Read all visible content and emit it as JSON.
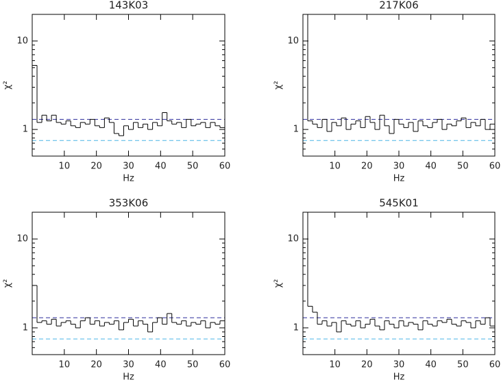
{
  "chart_data": [
    {
      "type": "histogram",
      "title": "143K03",
      "xlabel": "Hz",
      "ylabel": "χ²",
      "log_y": true,
      "color": "#000000",
      "bins": [
        0,
        1.5,
        3,
        4.5,
        6,
        7.5,
        9,
        10.5,
        12,
        13.5,
        15,
        16.5,
        18,
        19.5,
        21,
        22.5,
        24,
        25.5,
        27,
        28.5,
        30,
        31.5,
        33,
        34.5,
        36,
        37.5,
        39,
        40.5,
        42,
        43.5,
        45,
        46.5,
        48,
        49.5,
        51,
        52.5,
        54,
        55.5,
        57,
        58.5,
        60
      ],
      "values": [
        5.3,
        1.2,
        1.45,
        1.25,
        1.45,
        1.2,
        1.15,
        1.25,
        1.1,
        1.05,
        1.2,
        1.15,
        1.3,
        1.1,
        1.05,
        1.35,
        1.2,
        0.9,
        0.85,
        1.1,
        1.0,
        1.2,
        1.05,
        1.15,
        1.0,
        1.2,
        1.1,
        1.55,
        1.25,
        1.15,
        1.2,
        1.05,
        1.3,
        1.1,
        1.15,
        1.2,
        1.05,
        1.2,
        1.1,
        1.05
      ],
      "xlim": [
        0,
        60
      ],
      "xticks": [
        10,
        20,
        30,
        40,
        50,
        60
      ],
      "ylim": [
        0.5,
        20
      ],
      "yticks": [
        1,
        10
      ],
      "yminorticks": [
        0.6,
        0.7,
        0.8,
        0.9,
        2,
        3,
        4,
        5,
        6,
        7,
        8,
        9
      ],
      "hlines": [
        {
          "value": 1.3,
          "color": "#2a2a9a"
        },
        {
          "value": 0.75,
          "color": "#4ab4e6"
        }
      ]
    },
    {
      "type": "histogram",
      "title": "217K06",
      "xlabel": "Hz",
      "ylabel": "χ²",
      "log_y": true,
      "color": "#000000",
      "bins": [
        0,
        1.5,
        3,
        4.5,
        6,
        7.5,
        9,
        10.5,
        12,
        13.5,
        15,
        16.5,
        18,
        19.5,
        21,
        22.5,
        24,
        25.5,
        27,
        28.5,
        30,
        31.5,
        33,
        34.5,
        36,
        37.5,
        39,
        40.5,
        42,
        43.5,
        45,
        46.5,
        48,
        49.5,
        51,
        52.5,
        54,
        55.5,
        57,
        58.5,
        60
      ],
      "values": [
        20,
        1.25,
        1.15,
        1.05,
        1.3,
        0.95,
        1.2,
        1.1,
        1.35,
        1.0,
        1.15,
        1.25,
        1.05,
        1.4,
        1.2,
        1.0,
        1.45,
        1.1,
        0.9,
        1.3,
        1.15,
        1.05,
        1.2,
        0.95,
        1.25,
        1.1,
        1.05,
        1.2,
        1.3,
        1.0,
        1.15,
        1.1,
        1.25,
        1.35,
        1.05,
        1.2,
        1.1,
        1.3,
        1.0,
        1.15
      ],
      "xlim": [
        0,
        60
      ],
      "xticks": [
        10,
        20,
        30,
        40,
        50,
        60
      ],
      "ylim": [
        0.5,
        20
      ],
      "yticks": [
        1,
        10
      ],
      "yminorticks": [
        0.6,
        0.7,
        0.8,
        0.9,
        2,
        3,
        4,
        5,
        6,
        7,
        8,
        9
      ],
      "hlines": [
        {
          "value": 1.3,
          "color": "#2a2a9a"
        },
        {
          "value": 0.75,
          "color": "#4ab4e6"
        }
      ]
    },
    {
      "type": "histogram",
      "title": "353K06",
      "xlabel": "Hz",
      "ylabel": "χ²",
      "log_y": true,
      "color": "#000000",
      "bins": [
        0,
        1.5,
        3,
        4.5,
        6,
        7.5,
        9,
        10.5,
        12,
        13.5,
        15,
        16.5,
        18,
        19.5,
        21,
        22.5,
        24,
        25.5,
        27,
        28.5,
        30,
        31.5,
        33,
        34.5,
        36,
        37.5,
        39,
        40.5,
        42,
        43.5,
        45,
        46.5,
        48,
        49.5,
        51,
        52.5,
        54,
        55.5,
        57,
        58.5,
        60
      ],
      "values": [
        3.0,
        1.15,
        1.2,
        1.1,
        1.25,
        1.05,
        1.15,
        1.2,
        1.1,
        1.0,
        1.2,
        1.3,
        1.1,
        1.2,
        1.05,
        1.15,
        1.1,
        1.2,
        0.95,
        1.15,
        1.25,
        1.05,
        1.2,
        1.1,
        0.9,
        1.15,
        1.3,
        1.1,
        1.45,
        1.15,
        1.1,
        1.2,
        1.05,
        1.15,
        1.1,
        1.2,
        1.0,
        1.15,
        1.1,
        1.2
      ],
      "xlim": [
        0,
        60
      ],
      "xticks": [
        10,
        20,
        30,
        40,
        50,
        60
      ],
      "ylim": [
        0.5,
        20
      ],
      "yticks": [
        1,
        10
      ],
      "yminorticks": [
        0.6,
        0.7,
        0.8,
        0.9,
        2,
        3,
        4,
        5,
        6,
        7,
        8,
        9
      ],
      "hlines": [
        {
          "value": 1.3,
          "color": "#2a2a9a"
        },
        {
          "value": 0.75,
          "color": "#4ab4e6"
        }
      ]
    },
    {
      "type": "histogram",
      "title": "545K01",
      "xlabel": "Hz",
      "ylabel": "χ²",
      "log_y": true,
      "color": "#000000",
      "bins": [
        0,
        1.5,
        3,
        4.5,
        6,
        7.5,
        9,
        10.5,
        12,
        13.5,
        15,
        16.5,
        18,
        19.5,
        21,
        22.5,
        24,
        25.5,
        27,
        28.5,
        30,
        31.5,
        33,
        34.5,
        36,
        37.5,
        39,
        40.5,
        42,
        43.5,
        45,
        46.5,
        48,
        49.5,
        51,
        52.5,
        54,
        55.5,
        57,
        58.5,
        60
      ],
      "values": [
        20,
        1.75,
        1.5,
        1.1,
        1.2,
        1.05,
        1.15,
        0.9,
        1.2,
        1.1,
        1.05,
        1.2,
        1.0,
        1.1,
        1.25,
        1.05,
        0.95,
        1.2,
        1.1,
        1.0,
        1.2,
        1.05,
        1.15,
        1.1,
        0.95,
        1.2,
        1.1,
        1.05,
        1.2,
        1.15,
        1.25,
        1.1,
        1.05,
        1.2,
        1.15,
        1.0,
        1.2,
        1.1,
        1.3,
        1.05
      ],
      "xlim": [
        0,
        60
      ],
      "xticks": [
        10,
        20,
        30,
        40,
        50,
        60
      ],
      "ylim": [
        0.5,
        20
      ],
      "yticks": [
        1,
        10
      ],
      "yminorticks": [
        0.6,
        0.7,
        0.8,
        0.9,
        2,
        3,
        4,
        5,
        6,
        7,
        8,
        9
      ],
      "hlines": [
        {
          "value": 1.3,
          "color": "#2a2a9a"
        },
        {
          "value": 0.75,
          "color": "#4ab4e6"
        }
      ]
    }
  ]
}
